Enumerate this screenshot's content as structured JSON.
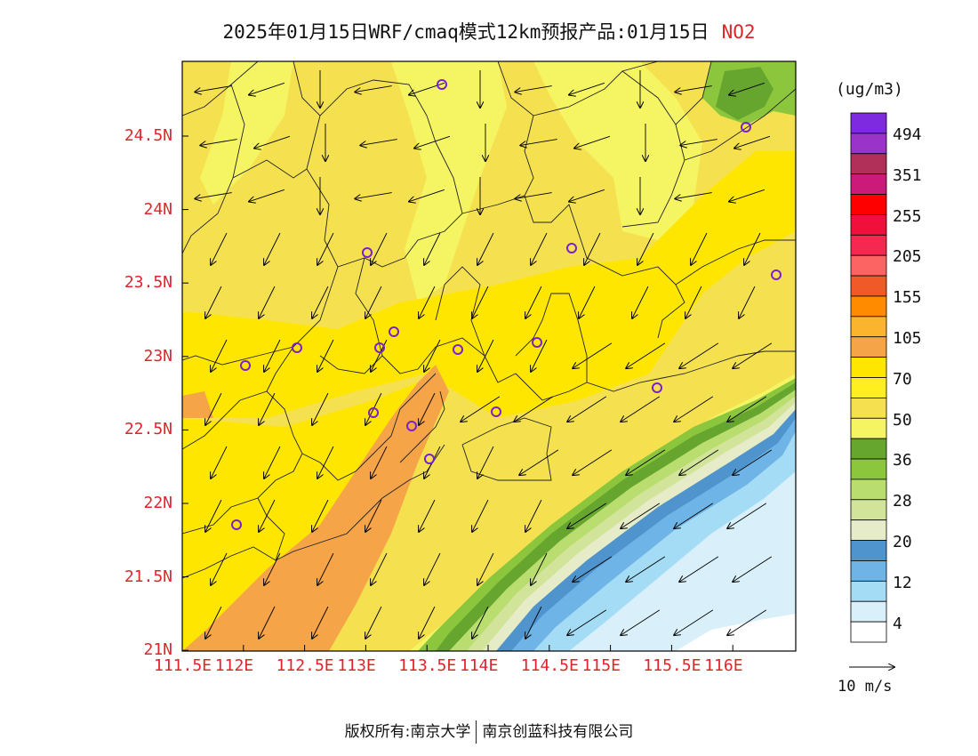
{
  "title": {
    "text": "2025年01月15日WRF/cmaq模式12km预报产品:01月15日",
    "pollutant": "NO2"
  },
  "colorbar": {
    "unit": "(ug/m3)",
    "labels": [
      "494",
      "351",
      "255",
      "205",
      "155",
      "105",
      "70",
      "50",
      "36",
      "28",
      "20",
      "12",
      "4"
    ],
    "colors": [
      "#7d2ae0",
      "#9a33c8",
      "#b0305a",
      "#cc1a7a",
      "#ff0000",
      "#f0103c",
      "#f52850",
      "#fc6464",
      "#f05a28",
      "#ff8c00",
      "#fab42d",
      "#f5a547",
      "#ffe600",
      "#ffef1f",
      "#f5e150",
      "#f5f564",
      "#66a62e",
      "#8cc63c",
      "#b9dd6f",
      "#d2e49a",
      "#e6ebc8",
      "#4f94cd",
      "#6eb4e6",
      "#a5dcf5",
      "#d9f0fb",
      "#ffffff"
    ]
  },
  "axes": {
    "lat_labels": [
      "24.5N",
      "24N",
      "23.5N",
      "23N",
      "22.5N",
      "22N",
      "21.5N",
      "21N"
    ],
    "lon_labels": [
      "111.5E",
      "112E",
      "112.5E",
      "113E",
      "113.5E",
      "114E",
      "114.5E",
      "115E",
      "115.5E",
      "116E"
    ]
  },
  "wind_legend": {
    "label": "10 m/s"
  },
  "footer": {
    "left": "版权所有:南京大学",
    "right": "南京创蓝科技有限公司"
  }
}
